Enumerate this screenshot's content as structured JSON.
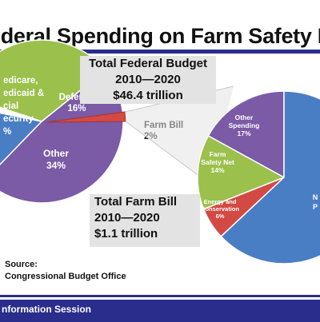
{
  "title": "ederal Spending on Farm Safety N",
  "callouts": {
    "federal": [
      "Total Federal Budget",
      "2010—2020",
      "$46.4 trillion"
    ],
    "farm": [
      "Total Farm Bill",
      "2010—2020",
      "$1.1 trillion"
    ]
  },
  "source": [
    "Source:",
    "Congressional Budget Office"
  ],
  "footer": "nformation Session",
  "colors": {
    "purple": "#7b5aa6",
    "blue": "#4a7ec4",
    "green": "#9bc04c",
    "red": "#d24a43",
    "navy": "#2a2d8c",
    "callout_bg": "#e3e3e3"
  },
  "chart_data": [
    {
      "type": "pie",
      "slices": [
        {
          "label_lines": [
            "edicare,",
            "edicaid &",
            "cial",
            "ecurity",
            "%"
          ],
          "value": 48,
          "color": "#7b5aa6"
        },
        {
          "label_lines": [
            "Defense",
            "16%"
          ],
          "value": 16,
          "color": "#4a7ec4"
        },
        {
          "label_lines": [
            "Farm Bill",
            "2%"
          ],
          "value": 2,
          "color": "#d24a43"
        },
        {
          "label_lines": [
            "Other",
            "34%"
          ],
          "value": 34,
          "color": "#9bc04c"
        }
      ]
    },
    {
      "type": "pie",
      "slices": [
        {
          "label_lines": [
            "Other",
            "Spending",
            "17%"
          ],
          "value": 17,
          "color": "#7b5aa6"
        },
        {
          "label_lines": [
            "Farm",
            "Safety Net",
            "14%"
          ],
          "value": 14,
          "color": "#9bc04c"
        },
        {
          "label_lines": [
            "Energy and",
            "Conservation",
            "6%"
          ],
          "value": 6,
          "color": "#d24a43"
        },
        {
          "label_lines": [
            "N",
            "P"
          ],
          "value": 63,
          "color": "#4a7ec4"
        }
      ]
    }
  ]
}
